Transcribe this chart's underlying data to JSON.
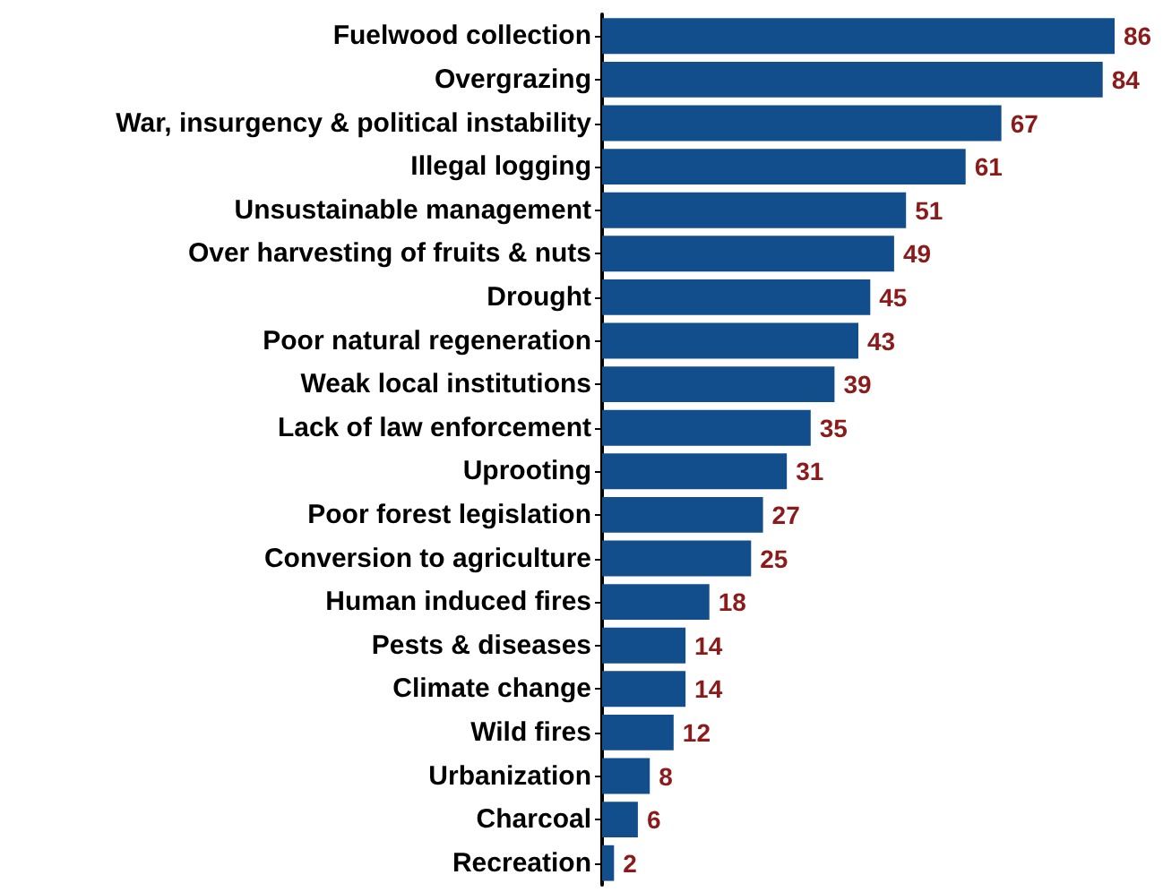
{
  "chart_data": {
    "type": "bar",
    "orientation": "horizontal",
    "data_labels": true,
    "categories": [
      "Fuelwood collection",
      "Overgrazing",
      "War, insurgency & political instability",
      "Illegal logging",
      "Unsustainable management",
      "Over harvesting of fruits & nuts",
      "Drought",
      "Poor natural regeneration",
      "Weak local institutions",
      "Lack of law enforcement",
      "Uprooting",
      "Poor forest legislation",
      "Conversion to agriculture",
      "Human induced fires",
      "Pests & diseases",
      "Climate change",
      "Wild fires",
      "Urbanization",
      "Charcoal",
      "Recreation"
    ],
    "values": [
      86,
      84,
      67,
      61,
      51,
      49,
      45,
      43,
      39,
      35,
      31,
      27,
      25,
      18,
      14,
      14,
      12,
      8,
      6,
      2
    ],
    "color": "#124e8c"
  }
}
